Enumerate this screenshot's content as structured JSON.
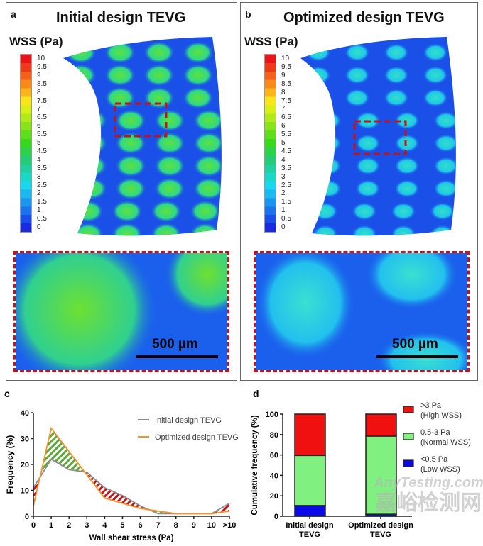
{
  "panel_a": {
    "label": "a",
    "title": "Initial design TEVG",
    "colorbar_title": "WSS (Pa)",
    "scale_bar": "500 µm"
  },
  "panel_b": {
    "label": "b",
    "title": "Optimized design TEVG",
    "colorbar_title": "WSS (Pa)",
    "scale_bar": "500 µm"
  },
  "colorbar": {
    "ticks": [
      "10",
      "9.5",
      "9",
      "8.5",
      "8",
      "7.5",
      "7",
      "6.5",
      "6",
      "5.5",
      "5",
      "4.5",
      "4",
      "3.5",
      "3",
      "2.5",
      "2",
      "1.5",
      "1",
      "0.5",
      "0"
    ],
    "colors": [
      "#e8141a",
      "#ef3a1a",
      "#f5601a",
      "#f98a1a",
      "#fbb51a",
      "#f8e61a",
      "#d8ef1a",
      "#b0ea1a",
      "#88e41a",
      "#5ede1a",
      "#38d81a",
      "#2bd24a",
      "#25cc78",
      "#20d0a0",
      "#1ad8c8",
      "#1ad6ef",
      "#1ab8f0",
      "#1a96f0",
      "#1a72ec",
      "#1a4ee8",
      "#1a2ae0"
    ]
  },
  "chart_data": [
    {
      "label": "c",
      "type": "line",
      "xlabel": "Wall shear stress (Pa)",
      "ylabel": "Frequency (%)",
      "categories": [
        "0",
        "1",
        "2",
        "3",
        "4",
        "5",
        "6",
        "7",
        "8",
        "9",
        "10",
        ">10"
      ],
      "ylim": [
        0,
        40
      ],
      "yticks": [
        "0",
        "10",
        "20",
        "30",
        "40"
      ],
      "legend_position": "top-right",
      "series": [
        {
          "name": "Initial design TEVG",
          "color": "#8c8c8c",
          "values": [
            11,
            22,
            18,
            17,
            11,
            8,
            4,
            1,
            1,
            1,
            1,
            5
          ]
        },
        {
          "name": "Optimized design TEVG",
          "color": "#f5922b",
          "values": [
            4,
            34,
            25,
            16,
            7,
            5,
            3,
            2,
            1,
            1,
            1,
            2
          ]
        }
      ],
      "hatch_colors": {
        "optimized_higher": "#5fa83a",
        "initial_higher": "#c8141b"
      }
    },
    {
      "label": "d",
      "type": "bar",
      "stacked": true,
      "ylabel": "Cumulative frequency (%)",
      "categories": [
        [
          "Initial design",
          "TEVG"
        ],
        [
          "Optimized design",
          "TEVG"
        ]
      ],
      "ylim": [
        0,
        100
      ],
      "yticks": [
        "0",
        "20",
        "40",
        "60",
        "80",
        "100"
      ],
      "legend_position": "right",
      "series": [
        {
          "name": "<0.5 Pa",
          "sub": "(Low WSS)",
          "color": "#0a0ae8",
          "values": [
            10.5,
            2
          ]
        },
        {
          "name": "0.5-3 Pa",
          "sub": "(Normal WSS)",
          "color": "#80f080",
          "values": [
            49,
            76.5
          ]
        },
        {
          "name": ">3 Pa",
          "sub": "(High WSS)",
          "color": "#f01010",
          "values": [
            40.5,
            21.5
          ]
        }
      ]
    }
  ],
  "watermark": {
    "cn": "嘉峪检测网",
    "en": "AnyTesting.com"
  }
}
